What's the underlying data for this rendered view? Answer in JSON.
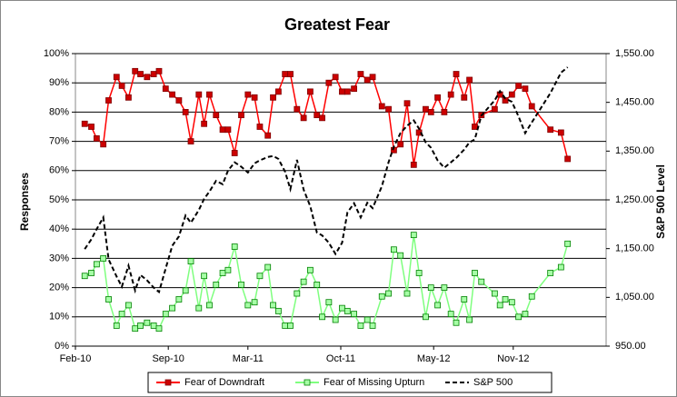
{
  "chart_data": {
    "type": "line",
    "title": "Greatest Fear",
    "y_label": "Responses",
    "y2_label": "S&P 500 Level",
    "x": [
      0.7,
      1.2,
      1.6,
      2.1,
      2.5,
      3.1,
      3.5,
      4,
      4.5,
      4.9,
      5.4,
      5.9,
      6.3,
      6.8,
      7.3,
      7.8,
      8.3,
      8.7,
      9.3,
      9.7,
      10.1,
      10.6,
      11.1,
      11.5,
      12,
      12.5,
      13,
      13.5,
      13.9,
      14.5,
      14.9,
      15.3,
      15.8,
      16.2,
      16.7,
      17.2,
      17.7,
      18.2,
      18.6,
      19.1,
      19.6,
      20.1,
      20.5,
      21,
      21.5,
      22,
      22.4,
      23.1,
      23.6,
      24,
      24.5,
      25,
      25.5,
      25.9,
      26.4,
      26.8,
      27.3,
      27.8,
      28.3,
      28.7,
      29.3,
      29.7,
      30.1,
      30.6,
      31.6,
      32,
      32.4,
      32.9,
      33.4,
      33.9,
      34.4,
      35.8,
      36.6,
      37.1
    ],
    "xlim": [
      0,
      40
    ],
    "xticks": [
      {
        "value": 0,
        "label": "Feb-10"
      },
      {
        "value": 7,
        "label": "Sep-10"
      },
      {
        "value": 13,
        "label": "Mar-11"
      },
      {
        "value": 20,
        "label": "Oct-11"
      },
      {
        "value": 27,
        "label": "May-12"
      },
      {
        "value": 33,
        "label": "Nov-12"
      }
    ],
    "ylim": [
      0,
      100
    ],
    "yticks": [
      {
        "value": 0,
        "label": "0%"
      },
      {
        "value": 10,
        "label": "10%"
      },
      {
        "value": 20,
        "label": "20%"
      },
      {
        "value": 30,
        "label": "30%"
      },
      {
        "value": 40,
        "label": "40%"
      },
      {
        "value": 50,
        "label": "50%"
      },
      {
        "value": 60,
        "label": "60%"
      },
      {
        "value": 70,
        "label": "70%"
      },
      {
        "value": 80,
        "label": "80%"
      },
      {
        "value": 90,
        "label": "90%"
      },
      {
        "value": 100,
        "label": "100%"
      }
    ],
    "y2lim": [
      950,
      1550
    ],
    "y2ticks": [
      {
        "value": 950,
        "label": "950.00"
      },
      {
        "value": 1050,
        "label": "1,050.00"
      },
      {
        "value": 1150,
        "label": "1,150.00"
      },
      {
        "value": 1250,
        "label": "1,250.00"
      },
      {
        "value": 1350,
        "label": "1,350.00"
      },
      {
        "value": 1450,
        "label": "1,450.00"
      },
      {
        "value": 1550,
        "label": "1,550.00"
      }
    ],
    "grid": true,
    "legend": "bottom",
    "series": [
      {
        "name": "Fear of Downdraft",
        "color": "#ff0000",
        "marker": "square",
        "marker_color": "#cc0000",
        "values": [
          76,
          75,
          71,
          69,
          84,
          92,
          89,
          85,
          94,
          93,
          92,
          93,
          94,
          88,
          86,
          84,
          80,
          70,
          86,
          76,
          86,
          79,
          74,
          74,
          66,
          79,
          86,
          85,
          75,
          72,
          85,
          87,
          93,
          93,
          81,
          78,
          87,
          79,
          78,
          90,
          92,
          87,
          87,
          88,
          93,
          91,
          92,
          82,
          81,
          67,
          69,
          83,
          62,
          73,
          81,
          80,
          85,
          80,
          86,
          93,
          85,
          91,
          75,
          79,
          81,
          86,
          84,
          86,
          89,
          88,
          82,
          74,
          73,
          64
        ]
      },
      {
        "name": "Fear of Missing Upturn",
        "color": "#7fff7f",
        "marker": "square",
        "marker_color": "#a6ffa6",
        "values": [
          24,
          25,
          28,
          30,
          16,
          7,
          11,
          14,
          6,
          7,
          8,
          7,
          6,
          11,
          13,
          16,
          19,
          29,
          13,
          24,
          14,
          21,
          25,
          26,
          34,
          21,
          14,
          15,
          24,
          27,
          14,
          12,
          7,
          7,
          18,
          22,
          26,
          21,
          10,
          15,
          9,
          13,
          12,
          11,
          7,
          9,
          7,
          17,
          18,
          33,
          31,
          18,
          38,
          25,
          10,
          20,
          14,
          20,
          11,
          8,
          16,
          9,
          25,
          22,
          18,
          14,
          16,
          15,
          10,
          11,
          17,
          25,
          27,
          35
        ]
      },
      {
        "name": "S&P 500",
        "color": "#000000",
        "dash": true,
        "axis": "y2",
        "values": [
          1149,
          1169,
          1190,
          1214,
          1128,
          1093,
          1072,
          1115,
          1064,
          1096,
          1085,
          1070,
          1061,
          1109,
          1156,
          1175,
          1218,
          1203,
          1229,
          1252,
          1267,
          1289,
          1282,
          1310,
          1327,
          1318,
          1306,
          1325,
          1331,
          1338,
          1340,
          1334,
          1308,
          1272,
          1332,
          1271,
          1237,
          1183,
          1177,
          1162,
          1139,
          1162,
          1224,
          1243,
          1214,
          1244,
          1233,
          1278,
          1327,
          1359,
          1387,
          1402,
          1413,
          1396,
          1368,
          1357,
          1331,
          1316,
          1327,
          1336,
          1353,
          1368,
          1374,
          1423,
          1454,
          1473,
          1458,
          1451,
          1421,
          1387,
          1409,
          1469,
          1511,
          1522
        ]
      }
    ]
  }
}
